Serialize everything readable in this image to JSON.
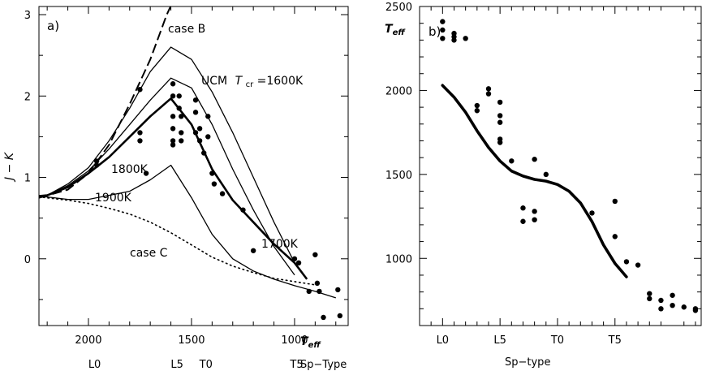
{
  "chart_data": [
    {
      "type": "line",
      "panel_label": "a)",
      "ylabel": "J − K",
      "xlabel": "T_eff",
      "x_axis_reversed": true,
      "xlim": [
        2240,
        740
      ],
      "ylim": [
        -0.82,
        3.1
      ],
      "xticks": [
        2000,
        1500,
        1000
      ],
      "yticks": [
        0,
        1,
        2,
        3
      ],
      "sptype_label": "Sp−Type",
      "sptype_ticks": [
        {
          "label": "L0",
          "x": 1970
        },
        {
          "label": "L5",
          "x": 1570
        },
        {
          "label": "T0",
          "x": 1430
        },
        {
          "label": "T5",
          "x": 990
        }
      ],
      "annotations": {
        "case_b": "case B",
        "ucm_prefix": "UCM",
        "ucm_tcr": "T",
        "ucm_tcr_sub": "cr",
        "ucm_value": "=1600K",
        "k1800": "1800K",
        "k1900": "1900K",
        "k1700": "1700K",
        "case_c": "case C"
      },
      "series": [
        {
          "key": "case_b",
          "style": "dashed",
          "points": [
            [
              2240,
              0.75
            ],
            [
              2100,
              0.85
            ],
            [
              2000,
              1.05
            ],
            [
              1900,
              1.4
            ],
            [
              1800,
              1.9
            ],
            [
              1700,
              2.45
            ],
            [
              1620,
              3.0
            ],
            [
              1565,
              3.3
            ]
          ]
        },
        {
          "key": "ucm_1600",
          "style": "solid",
          "points": [
            [
              2240,
              0.77
            ],
            [
              2200,
              0.78
            ],
            [
              2100,
              0.92
            ],
            [
              2000,
              1.12
            ],
            [
              1900,
              1.45
            ],
            [
              1800,
              1.85
            ],
            [
              1700,
              2.3
            ],
            [
              1600,
              2.6
            ],
            [
              1500,
              2.45
            ],
            [
              1400,
              2.05
            ],
            [
              1300,
              1.55
            ],
            [
              1200,
              1.0
            ],
            [
              1100,
              0.45
            ],
            [
              1000,
              -0.05
            ]
          ]
        },
        {
          "key": "thin_2",
          "style": "solid",
          "points": [
            [
              2240,
              0.77
            ],
            [
              2200,
              0.78
            ],
            [
              2100,
              0.9
            ],
            [
              2000,
              1.08
            ],
            [
              1900,
              1.35
            ],
            [
              1800,
              1.65
            ],
            [
              1700,
              1.95
            ],
            [
              1600,
              2.22
            ],
            [
              1500,
              2.1
            ],
            [
              1400,
              1.65
            ],
            [
              1300,
              1.1
            ],
            [
              1200,
              0.6
            ],
            [
              1100,
              0.15
            ],
            [
              1000,
              -0.2
            ]
          ]
        },
        {
          "key": "bold_1800",
          "style": "bold",
          "points": [
            [
              2240,
              0.77
            ],
            [
              2200,
              0.78
            ],
            [
              2100,
              0.88
            ],
            [
              2000,
              1.05
            ],
            [
              1900,
              1.25
            ],
            [
              1800,
              1.5
            ],
            [
              1700,
              1.75
            ],
            [
              1600,
              1.97
            ],
            [
              1500,
              1.65
            ],
            [
              1400,
              1.1
            ],
            [
              1300,
              0.72
            ],
            [
              1200,
              0.45
            ],
            [
              1100,
              0.18
            ],
            [
              1000,
              -0.05
            ],
            [
              940,
              -0.25
            ]
          ]
        },
        {
          "key": "k1900",
          "style": "solid",
          "points": [
            [
              2240,
              0.77
            ],
            [
              2200,
              0.76
            ],
            [
              2100,
              0.73
            ],
            [
              2000,
              0.73
            ],
            [
              1900,
              0.78
            ],
            [
              1800,
              0.83
            ],
            [
              1700,
              0.97
            ],
            [
              1600,
              1.15
            ],
            [
              1500,
              0.75
            ],
            [
              1400,
              0.3
            ],
            [
              1300,
              0.0
            ],
            [
              1200,
              -0.15
            ],
            [
              1100,
              -0.25
            ],
            [
              1000,
              -0.33
            ],
            [
              900,
              -0.4
            ],
            [
              800,
              -0.48
            ]
          ]
        },
        {
          "key": "case_c",
          "style": "dotted",
          "points": [
            [
              2240,
              0.76
            ],
            [
              2100,
              0.72
            ],
            [
              2000,
              0.68
            ],
            [
              1900,
              0.62
            ],
            [
              1800,
              0.55
            ],
            [
              1700,
              0.45
            ],
            [
              1600,
              0.32
            ],
            [
              1500,
              0.17
            ],
            [
              1400,
              0.02
            ],
            [
              1300,
              -0.09
            ],
            [
              1200,
              -0.17
            ],
            [
              1100,
              -0.24
            ],
            [
              1000,
              -0.28
            ],
            [
              900,
              -0.32
            ]
          ]
        }
      ],
      "points": [
        [
          1960,
          1.2
        ],
        [
          1960,
          1.15
        ],
        [
          1750,
          2.08
        ],
        [
          1750,
          1.55
        ],
        [
          1750,
          1.45
        ],
        [
          1720,
          1.05
        ],
        [
          1590,
          2.15
        ],
        [
          1590,
          2.0
        ],
        [
          1590,
          1.75
        ],
        [
          1590,
          1.6
        ],
        [
          1590,
          1.45
        ],
        [
          1590,
          1.4
        ],
        [
          1560,
          2.0
        ],
        [
          1560,
          1.85
        ],
        [
          1550,
          1.75
        ],
        [
          1550,
          1.55
        ],
        [
          1550,
          1.45
        ],
        [
          1480,
          1.95
        ],
        [
          1480,
          1.8
        ],
        [
          1480,
          1.55
        ],
        [
          1460,
          1.6
        ],
        [
          1460,
          1.45
        ],
        [
          1440,
          1.3
        ],
        [
          1420,
          1.75
        ],
        [
          1420,
          1.5
        ],
        [
          1400,
          1.05
        ],
        [
          1390,
          0.92
        ],
        [
          1350,
          0.8
        ],
        [
          1250,
          0.6
        ],
        [
          1200,
          0.1
        ],
        [
          1000,
          0.0
        ],
        [
          980,
          -0.05
        ],
        [
          930,
          -0.4
        ],
        [
          900,
          0.05
        ],
        [
          890,
          -0.3
        ],
        [
          880,
          -0.4
        ],
        [
          860,
          -0.72
        ],
        [
          790,
          -0.38
        ],
        [
          780,
          -0.7
        ]
      ]
    },
    {
      "type": "scatter",
      "panel_label": "b)",
      "ylabel": "T",
      "ylabel_sub": "eff",
      "xlabel": "Sp−type",
      "xlim": [
        -2,
        22.5
      ],
      "ylim": [
        600,
        2500
      ],
      "xticks": [
        {
          "label": "L0",
          "x": 0
        },
        {
          "label": "L5",
          "x": 5
        },
        {
          "label": "T0",
          "x": 10
        },
        {
          "label": "T5",
          "x": 15
        }
      ],
      "yticks": [
        1000,
        1500,
        2000,
        2500
      ],
      "fit_line": [
        [
          0,
          2030
        ],
        [
          1,
          1960
        ],
        [
          2,
          1870
        ],
        [
          3,
          1760
        ],
        [
          4,
          1660
        ],
        [
          5,
          1580
        ],
        [
          6,
          1520
        ],
        [
          7,
          1490
        ],
        [
          8,
          1470
        ],
        [
          9,
          1460
        ],
        [
          10,
          1440
        ],
        [
          11,
          1400
        ],
        [
          12,
          1330
        ],
        [
          13,
          1220
        ],
        [
          14,
          1080
        ],
        [
          15,
          970
        ],
        [
          16,
          890
        ]
      ],
      "points": [
        [
          0,
          2410
        ],
        [
          0,
          2360
        ],
        [
          0,
          2310
        ],
        [
          1,
          2340
        ],
        [
          1,
          2320
        ],
        [
          1,
          2300
        ],
        [
          2,
          2310
        ],
        [
          3,
          1910
        ],
        [
          3,
          1880
        ],
        [
          4,
          2010
        ],
        [
          4,
          1980
        ],
        [
          5,
          1930
        ],
        [
          5,
          1850
        ],
        [
          5,
          1810
        ],
        [
          5,
          1710
        ],
        [
          5,
          1690
        ],
        [
          6,
          1580
        ],
        [
          7,
          1300
        ],
        [
          7,
          1220
        ],
        [
          8,
          1590
        ],
        [
          8,
          1230
        ],
        [
          8,
          1280
        ],
        [
          9,
          1500
        ],
        [
          13,
          1270
        ],
        [
          15,
          1340
        ],
        [
          15,
          1130
        ],
        [
          16,
          980
        ],
        [
          17,
          960
        ],
        [
          18,
          760
        ],
        [
          18,
          790
        ],
        [
          19,
          700
        ],
        [
          19,
          750
        ],
        [
          20,
          780
        ],
        [
          20,
          720
        ],
        [
          21,
          710
        ],
        [
          22,
          690
        ],
        [
          22,
          700
        ]
      ]
    }
  ]
}
